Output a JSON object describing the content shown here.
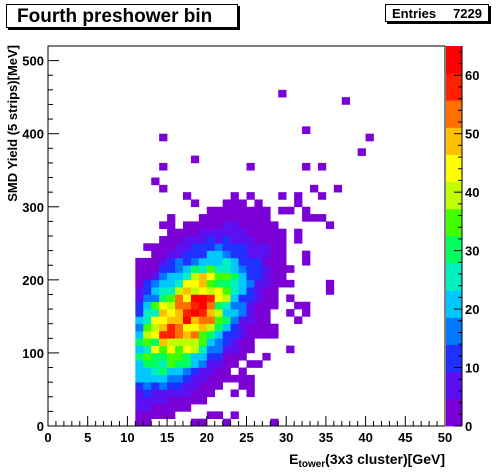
{
  "chart_data": {
    "type": "heatmap",
    "title": "Fourth preshower bin",
    "stats": {
      "label": "Entries",
      "value": "7229"
    },
    "xlabel_main": "E",
    "xlabel_sub": "tower",
    "xlabel_rest": "(3x3 cluster)[GeV]",
    "ylabel": "SMD Yield (5 strips)[MeV]",
    "xlim": [
      0,
      50
    ],
    "ylim": [
      0,
      520
    ],
    "x_ticks": [
      "0",
      "5",
      "10",
      "15",
      "20",
      "25",
      "30",
      "35",
      "40",
      "45",
      "50"
    ],
    "y_ticks": [
      "0",
      "100",
      "200",
      "300",
      "400",
      "500"
    ],
    "zlim": [
      0,
      65
    ],
    "z_ticks": [
      "0",
      "10",
      "20",
      "30",
      "40",
      "50",
      "60"
    ],
    "bin_width_x": 1,
    "bin_width_y": 10,
    "distribution": {
      "model": "gaussian-blob",
      "peak_x": 17.5,
      "peak_y": 150,
      "peak_value": 62,
      "sigma_x": 4.5,
      "sigma_y": 55,
      "correlation": 0.55
    },
    "palette": [
      "#7a00d6",
      "#5a10f0",
      "#2030ff",
      "#0078ff",
      "#00c8ff",
      "#00f0c0",
      "#00ff60",
      "#40ff00",
      "#c0ff00",
      "#ffff00",
      "#ffc000",
      "#ff7000",
      "#ff2000",
      "#ff0000"
    ]
  }
}
